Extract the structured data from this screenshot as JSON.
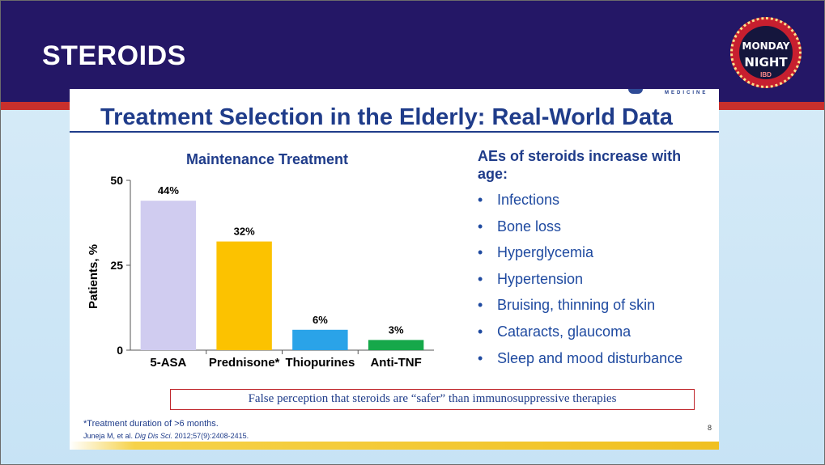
{
  "deck_title": "STEROIDS",
  "logo": {
    "line1": "MONDAY",
    "line2": "NIGHT",
    "line3": "IBD"
  },
  "slide": {
    "title": "Treatment Selection in the Elderly: Real-World Data",
    "org_text": "MEDICINE",
    "aes_heading": "AEs of steroids increase with age:",
    "aes_items": [
      "Infections",
      "Bone loss",
      "Hyperglycemia",
      "Hypertension",
      "Bruising, thinning of skin",
      "Cataracts, glaucoma",
      "Sleep and mood disturbance"
    ],
    "bullet": "•",
    "note": "False perception that steroids are “safer” than immunosuppressive therapies",
    "footnote": "*Treatment duration of >6 months.",
    "reference_author": "Juneja M, et al. ",
    "reference_journal": "Dig Dis Sci.",
    "reference_rest": " 2012;57(9):2408-2415.",
    "page_number": "8"
  },
  "chart_data": {
    "type": "bar",
    "title": "Maintenance Treatment",
    "ylabel": "Patients, %",
    "xlabel": "",
    "ylim": [
      0,
      50
    ],
    "yticks": [
      0,
      25,
      50
    ],
    "categories": [
      "5-ASA",
      "Prednisone*",
      "Thiopurines",
      "Anti-TNF"
    ],
    "values": [
      44,
      32,
      6,
      3
    ],
    "value_labels": [
      "44%",
      "32%",
      "6%",
      "3%"
    ],
    "colors": [
      "#d0ccf0",
      "#fcc200",
      "#2aa3e8",
      "#16a84a"
    ],
    "grid": false
  }
}
